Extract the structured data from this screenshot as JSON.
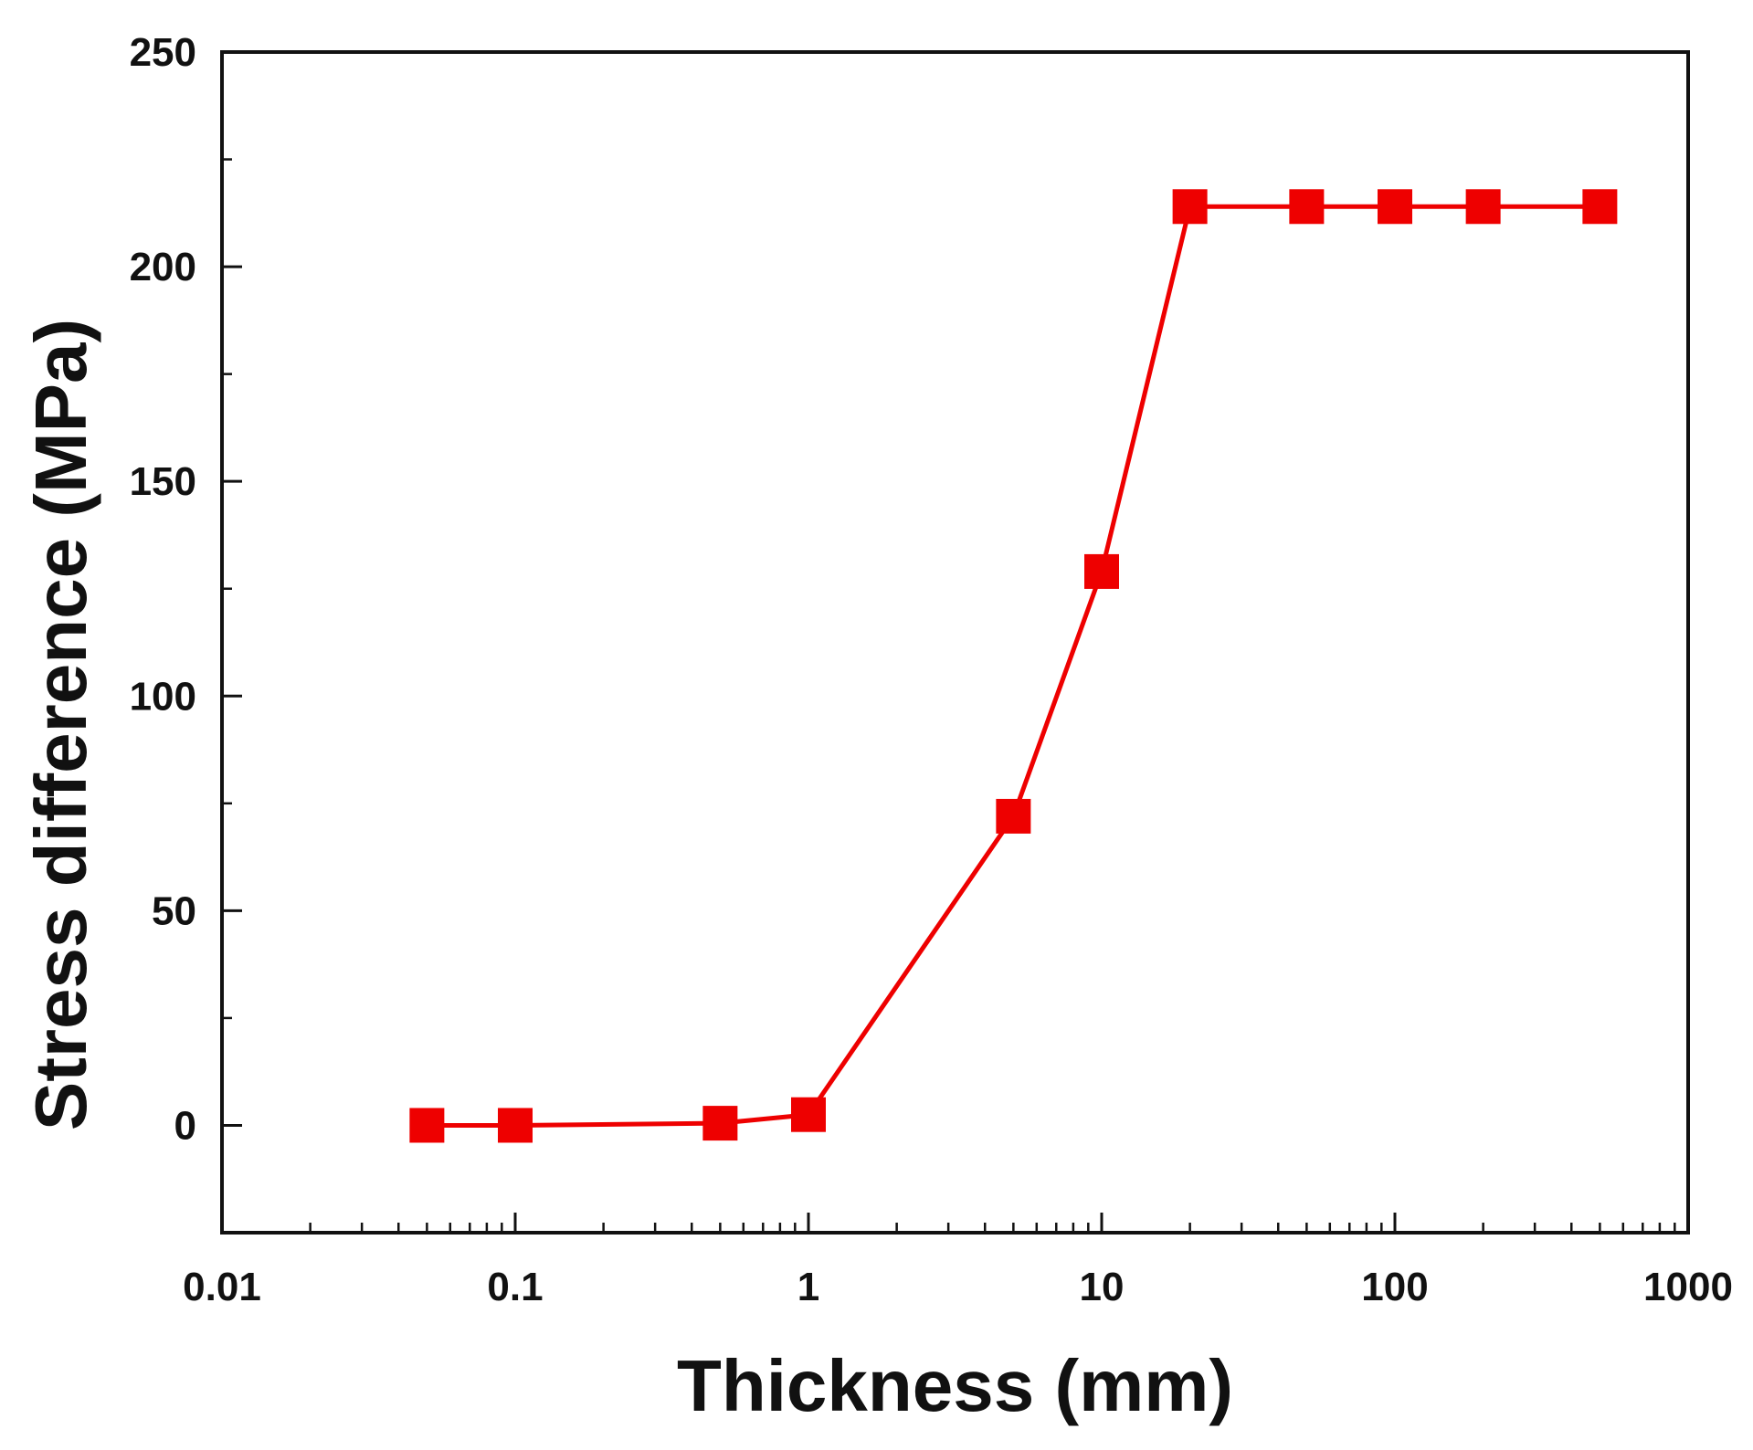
{
  "chart_data": {
    "type": "line",
    "title": "",
    "xlabel": "Thickness (mm)",
    "ylabel": "Stress difference (MPa)",
    "xscale": "log",
    "xlim": [
      0.01,
      1000
    ],
    "ylim": [
      -25,
      250
    ],
    "xticks": [
      0.01,
      0.1,
      1,
      10,
      100,
      1000
    ],
    "xtick_labels": [
      "0.01",
      "0.1",
      "1",
      "10",
      "100",
      "1000"
    ],
    "yticks": [
      0,
      50,
      100,
      150,
      200,
      250
    ],
    "ytick_labels": [
      "0",
      "50",
      "100",
      "150",
      "200",
      "250"
    ],
    "grid": false,
    "legend": "none",
    "series": [
      {
        "name": "Stress difference",
        "color": "#ee0000",
        "marker": "square",
        "x": [
          0.05,
          0.1,
          0.5,
          1,
          5,
          10,
          20,
          50,
          100,
          200,
          500
        ],
        "y": [
          0,
          0,
          0.5,
          2.5,
          72,
          129,
          214,
          214,
          214,
          214,
          214
        ]
      }
    ]
  }
}
